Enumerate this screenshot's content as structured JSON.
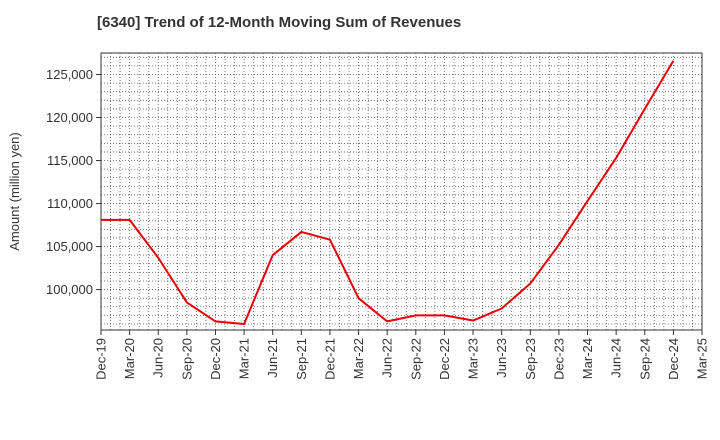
{
  "chart_data": {
    "type": "line",
    "title": "[6340]  Trend of 12-Month Moving Sum of Revenues",
    "xlabel": "",
    "ylabel": "Amount (million yen)",
    "categories": [
      "Dec-19",
      "Mar-20",
      "Jun-20",
      "Sep-20",
      "Dec-20",
      "Mar-21",
      "Jun-21",
      "Sep-21",
      "Dec-21",
      "Mar-22",
      "Jun-22",
      "Sep-22",
      "Dec-22",
      "Mar-23",
      "Jun-23",
      "Sep-23",
      "Dec-23",
      "Mar-24",
      "Jun-24",
      "Sep-24",
      "Dec-24",
      "Mar-25"
    ],
    "series": [
      {
        "color": "#e8000b",
        "values": [
          108100,
          108100,
          103700,
          98500,
          96300,
          96000,
          104000,
          106700,
          105800,
          99000,
          96300,
          97000,
          97000,
          96400,
          97800,
          100700,
          105200,
          110300,
          115300,
          121000,
          126600,
          null
        ]
      }
    ],
    "yticks": [
      100000,
      105000,
      110000,
      115000,
      120000,
      125000
    ],
    "ytick_labels": [
      "100,000",
      "105,000",
      "110,000",
      "115,000",
      "120,000",
      "125,000"
    ],
    "ylim": [
      95300,
      127500
    ],
    "grid": true,
    "grid_style": "dotted"
  }
}
